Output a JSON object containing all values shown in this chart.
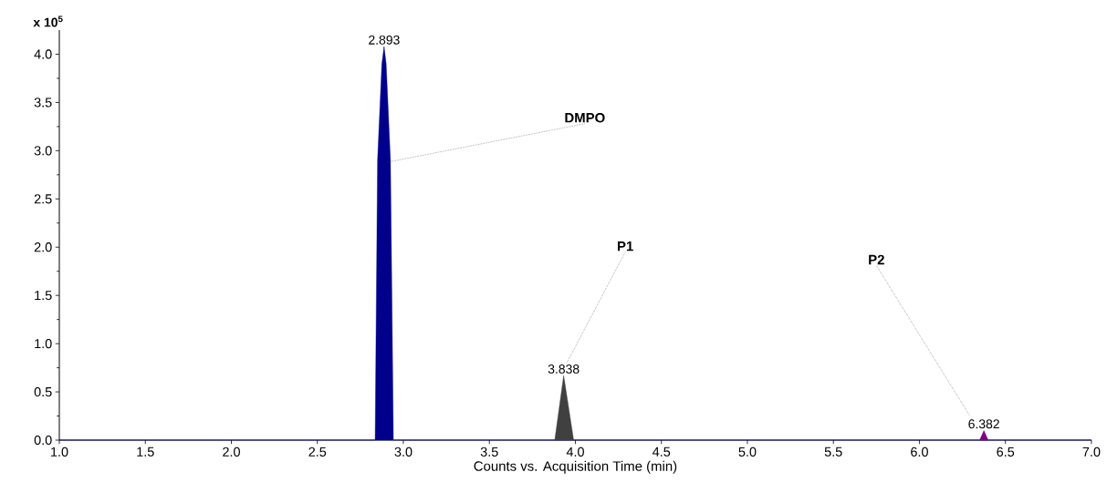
{
  "chart_data": {
    "type": "area",
    "xlabel": "Counts vs. Acquisition Time (min)",
    "ylabel": "x 10$^{5}$",
    "series": [
      {
        "color": "#00008b",
        "x": [
          1.0,
          2.836,
          2.85,
          2.875,
          2.888,
          2.9,
          2.925,
          2.942,
          7.0
        ],
        "values": [
          0,
          0,
          2.9,
          3.9,
          4.08,
          3.9,
          2.9,
          0,
          0
        ]
      },
      {
        "color": "#404040",
        "x": [
          3.88,
          3.932,
          3.99
        ],
        "values": [
          0,
          0.67,
          0
        ]
      },
      {
        "color": "#800080",
        "x": [
          6.35,
          6.375,
          6.4
        ],
        "values": [
          0,
          0.1,
          0
        ]
      }
    ],
    "annotations": [
      {
        "text": "2.893",
        "x": 2.888,
        "y": 4.08
      },
      {
        "text": "3.838",
        "x": 3.932,
        "y": 0.67
      },
      {
        "text": "6.382",
        "x": 6.375,
        "y": 0.1
      },
      {
        "text": "DMPO",
        "x": 2.905,
        "y": 2.88
      },
      "P1",
      "P2"
    ],
    "xlim": [
      1.0,
      7.0
    ],
    "ylim": [
      0,
      4.25
    ],
    "xticks": [
      {
        "value": 1,
        "label": "1.0"
      },
      1.5,
      {
        "value": 2,
        "label": "2.0"
      },
      2.5,
      {
        "value": 3,
        "label": "3.0"
      },
      3.5,
      {
        "value": 4,
        "label": "4.0"
      },
      4.5,
      {
        "value": 5,
        "label": "5.0"
      },
      5.5,
      {
        "value": 6,
        "label": "6.0"
      },
      6.5,
      {
        "value": 7,
        "label": "7.0"
      }
    ],
    "yticks": [
      {
        "value": 0,
        "label": "0.0"
      },
      0.5,
      {
        "value": 1,
        "label": "1.0"
      },
      1.5,
      {
        "value": 2,
        "label": "2.0"
      },
      2.5,
      {
        "value": 3,
        "label": "3.0"
      },
      3.5,
      {
        "value": 4,
        "label": "4.0"
      }
    ]
  }
}
